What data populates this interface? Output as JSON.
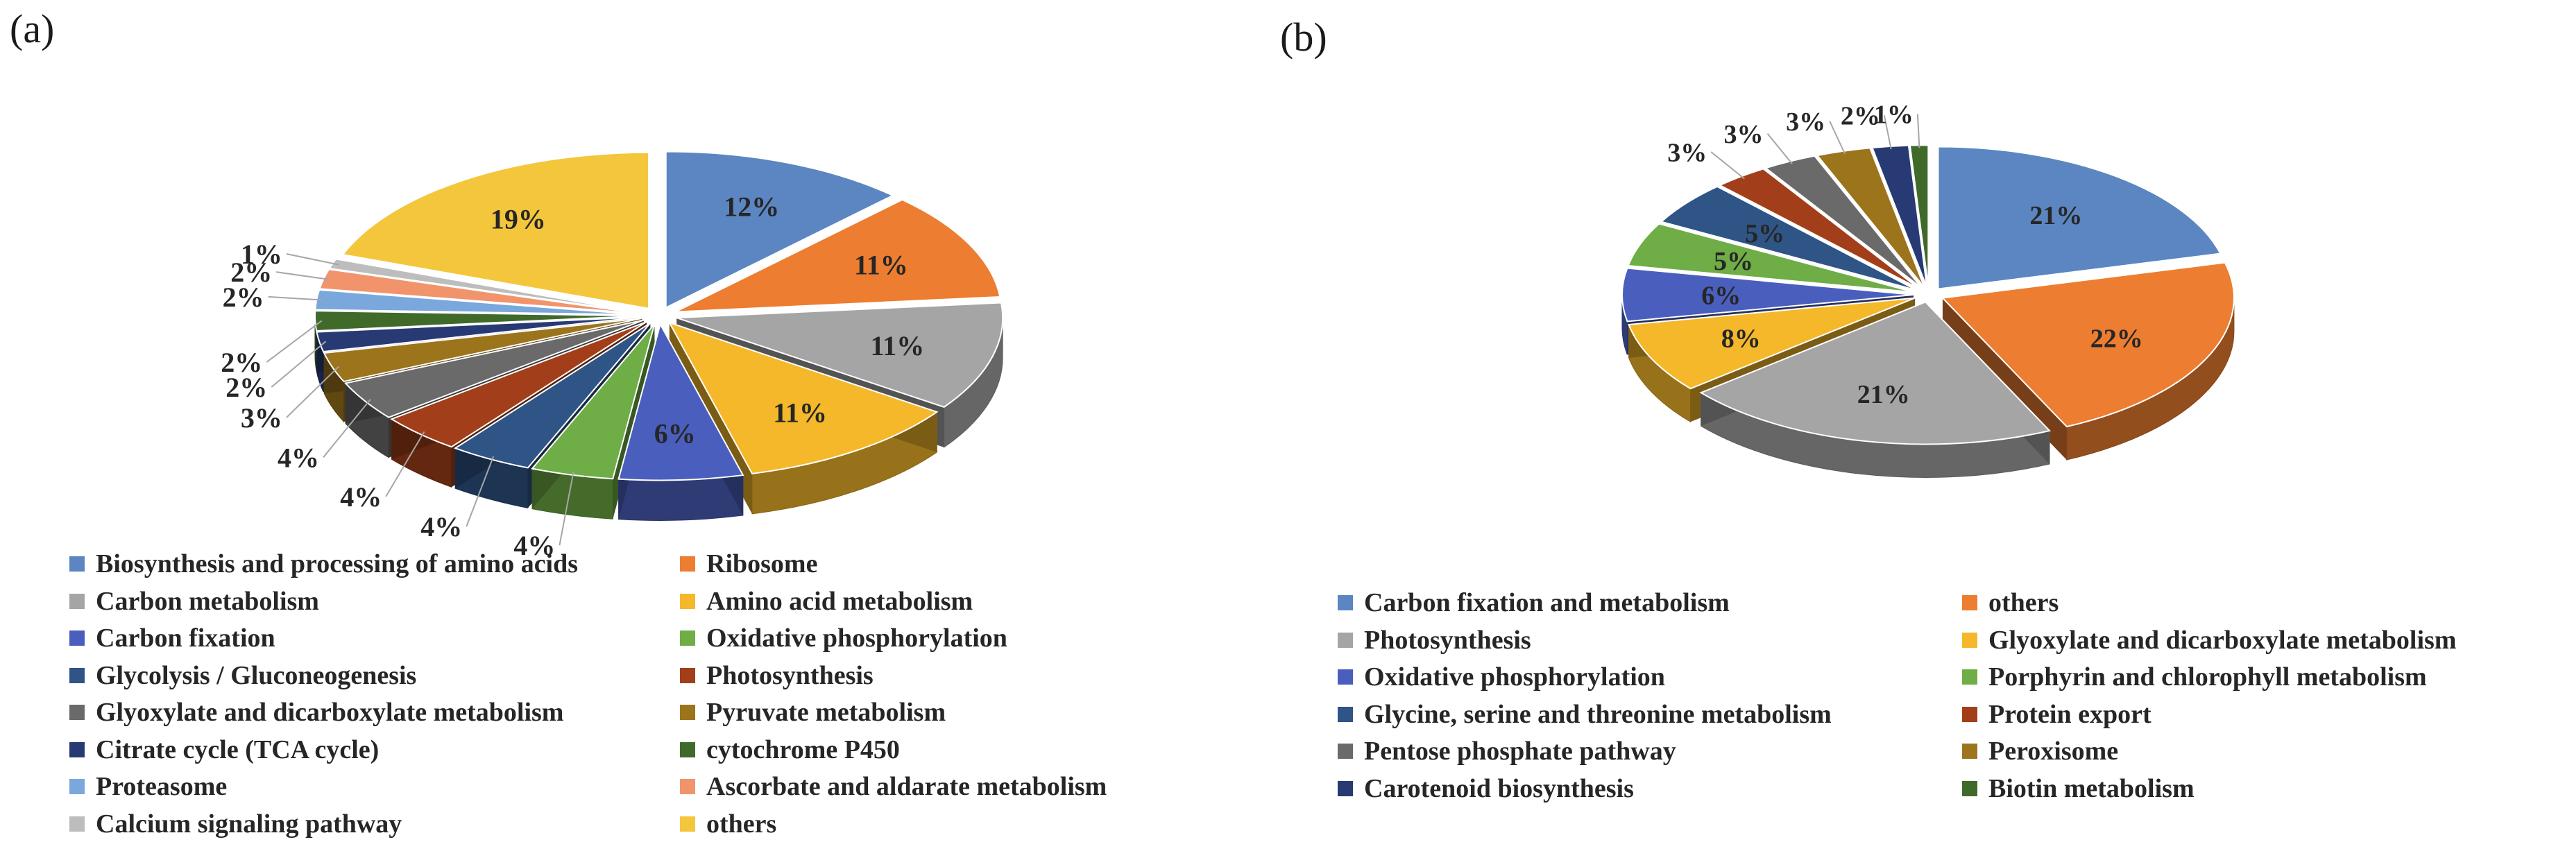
{
  "panels": {
    "a": "(a)",
    "b": "(b)"
  },
  "chart_data": [
    {
      "type": "pie",
      "panel": "(a)",
      "title": "",
      "legend_placement": "bottom",
      "slices": [
        {
          "name": "Biosynthesis and processing of amino acids",
          "value": 12,
          "label": "12%",
          "color": "#5b86c1"
        },
        {
          "name": "Ribosome",
          "value": 11,
          "label": "11%",
          "color": "#ed7d31"
        },
        {
          "name": "Carbon metabolism",
          "value": 11,
          "label": "11%",
          "color": "#a5a5a5"
        },
        {
          "name": "Amino acid metabolism",
          "value": 11,
          "label": "11%",
          "color": "#f4b82a"
        },
        {
          "name": "Carbon fixation",
          "value": 6,
          "label": "6%",
          "color": "#4a5fbd"
        },
        {
          "name": "Oxidative phosphorylation",
          "value": 4,
          "label": "4%",
          "color": "#6fad46"
        },
        {
          "name": "Glycolysis / Gluconeogenesis",
          "value": 4,
          "label": "4%",
          "color": "#2f5486"
        },
        {
          "name": "Photosynthesis",
          "value": 4,
          "label": "4%",
          "color": "#a23f1a"
        },
        {
          "name": "Glyoxylate and dicarboxylate metabolism",
          "value": 4,
          "label": "4%",
          "color": "#6a6a6a"
        },
        {
          "name": "Pyruvate metabolism",
          "value": 3,
          "label": "3%",
          "color": "#9c741c"
        },
        {
          "name": "Citrate cycle (TCA cycle)",
          "value": 2,
          "label": "2%",
          "color": "#283a74"
        },
        {
          "name": "cytochrome P450",
          "value": 2,
          "label": "2%",
          "color": "#406a2a"
        },
        {
          "name": "Proteasome",
          "value": 2,
          "label": "2%",
          "color": "#7aa7dc"
        },
        {
          "name": "Ascorbate and aldarate metabolism",
          "value": 2,
          "label": "2%",
          "color": "#f1946b"
        },
        {
          "name": "Calcium signaling pathway",
          "value": 1,
          "label": "1%",
          "color": "#bdbdbd"
        },
        {
          "name": "others",
          "value": 19,
          "label": "19%",
          "color": "#f4c63c"
        }
      ]
    },
    {
      "type": "pie",
      "panel": "(b)",
      "title": "",
      "legend_placement": "bottom",
      "slices": [
        {
          "name": "Carbon fixation and  metabolism",
          "value": 21,
          "label": "21%",
          "color": "#5b86c1"
        },
        {
          "name": "others",
          "value": 22,
          "label": "22%",
          "color": "#ed7d31"
        },
        {
          "name": "Photosynthesis",
          "value": 21,
          "label": "21%",
          "color": "#a5a5a5"
        },
        {
          "name": "Glyoxylate and dicarboxylate metabolism",
          "value": 8,
          "label": "8%",
          "color": "#f4b82a"
        },
        {
          "name": "Oxidative phosphorylation",
          "value": 6,
          "label": "6%",
          "color": "#4a5fbd"
        },
        {
          "name": "Porphyrin and chlorophyll metabolism",
          "value": 5,
          "label": "5%",
          "color": "#6fad46"
        },
        {
          "name": "Glycine, serine and threonine metabolism",
          "value": 5,
          "label": "5%",
          "color": "#2f5486"
        },
        {
          "name": "Protein export",
          "value": 3,
          "label": "3%",
          "color": "#a23f1a"
        },
        {
          "name": "Pentose phosphate pathway",
          "value": 3,
          "label": "3%",
          "color": "#6a6a6a"
        },
        {
          "name": "Peroxisome",
          "value": 3,
          "label": "3%",
          "color": "#9c741c"
        },
        {
          "name": "Carotenoid biosynthesis",
          "value": 2,
          "label": "2%",
          "color": "#283a74"
        },
        {
          "name": "Biotin metabolism",
          "value": 1,
          "label": "1%",
          "color": "#406a2a"
        }
      ]
    }
  ]
}
